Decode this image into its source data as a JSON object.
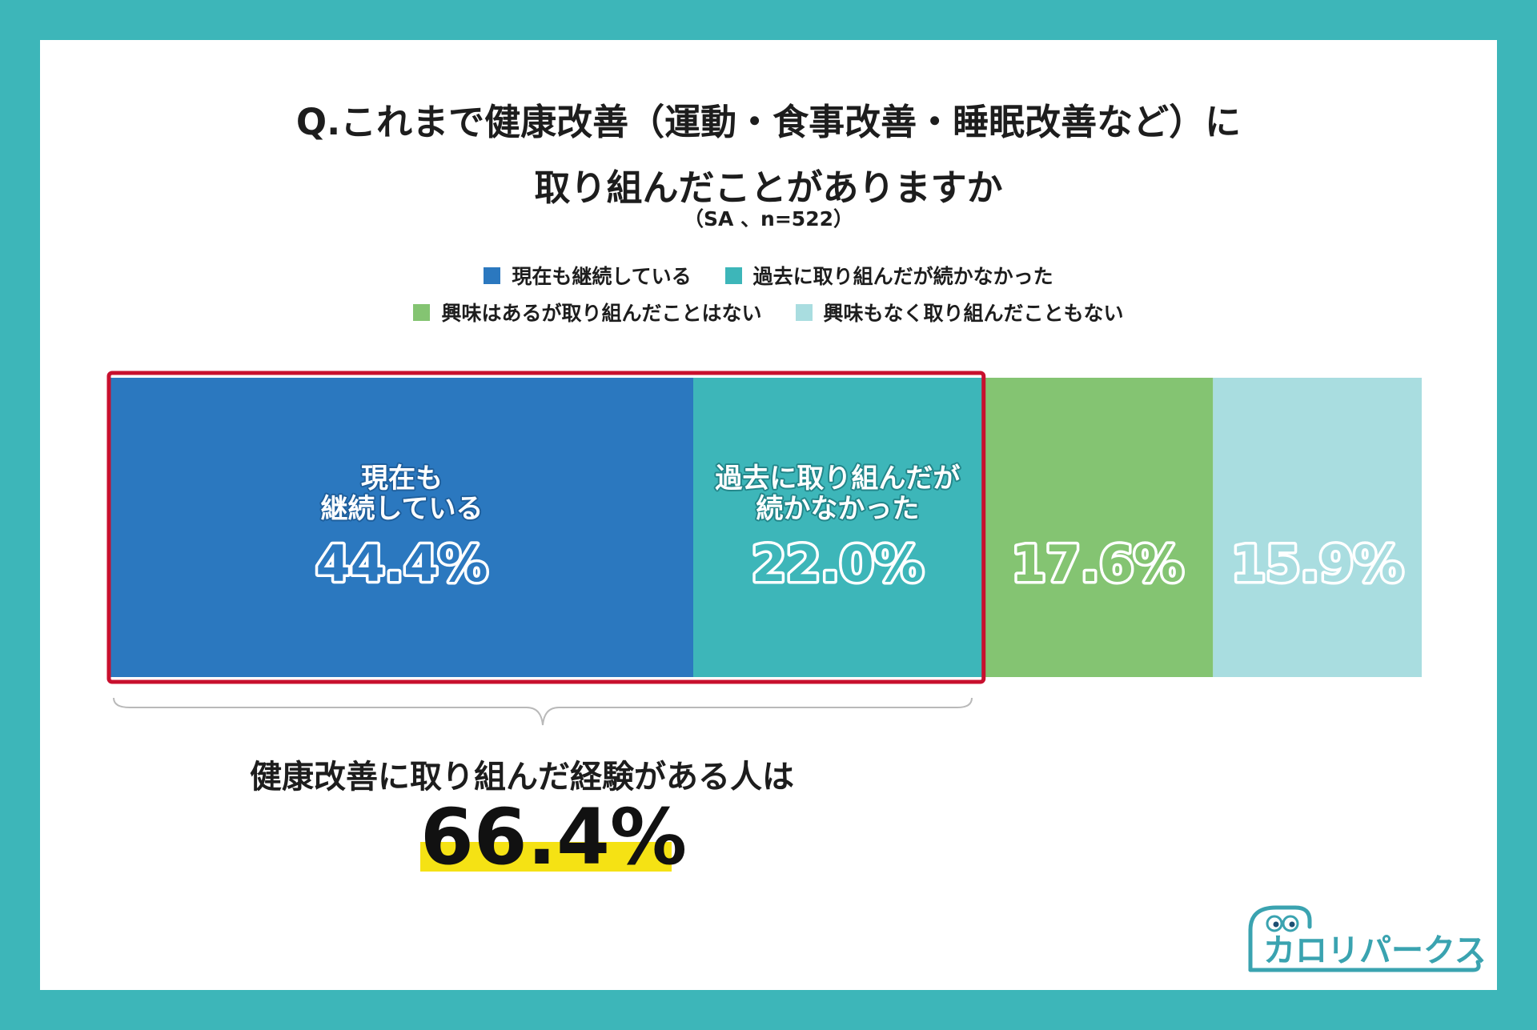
{
  "title_lines": [
    "Q.これまで健康改善（運動・食事改善・睡眠改善など）に",
    "取り組んだことがありますか"
  ],
  "subtitle": "（SA 、n=522）",
  "colors": {
    "background": "#3db6b9",
    "highlight_box": "#c8102e",
    "marker": "#f5e214"
  },
  "legend": [
    {
      "label": "現在も継続している",
      "color": "#2b78bf"
    },
    {
      "label": "過去に取り組んだが続かなかった",
      "color": "#3db6b9"
    },
    {
      "label": "興味はあるが取り組んだことはない",
      "color": "#84c472"
    },
    {
      "label": "興味もなく取り組んだこともない",
      "color": "#a9dde0"
    }
  ],
  "chart_data": {
    "type": "bar",
    "orientation": "horizontal-stacked",
    "series": [
      {
        "name": "現在も継続している",
        "value": 44.4,
        "label_lines": [
          "現在も",
          "継続している"
        ],
        "value_label": "44.4%",
        "color": "#2b78bf"
      },
      {
        "name": "過去に取り組んだが続かなかった",
        "value": 22.0,
        "label_lines": [
          "過去に取り組んだが",
          "続かなかった"
        ],
        "value_label": "22.0%",
        "color": "#3db6b9"
      },
      {
        "name": "興味はあるが取り組んだことはない",
        "value": 17.6,
        "label_lines": [],
        "value_label": "17.6%",
        "color": "#84c472"
      },
      {
        "name": "興味もなく取り組んだこともない",
        "value": 15.9,
        "label_lines": [],
        "value_label": "15.9%",
        "color": "#a9dde0"
      }
    ],
    "highlighted_series": [
      "現在も継続している",
      "過去に取り組んだが続かなかった"
    ]
  },
  "summary": {
    "text": "健康改善に取り組んだ経験がある人は",
    "value": "66.4%"
  },
  "logo": {
    "text": "カロリパークス",
    "color": "#3aa3b0"
  }
}
